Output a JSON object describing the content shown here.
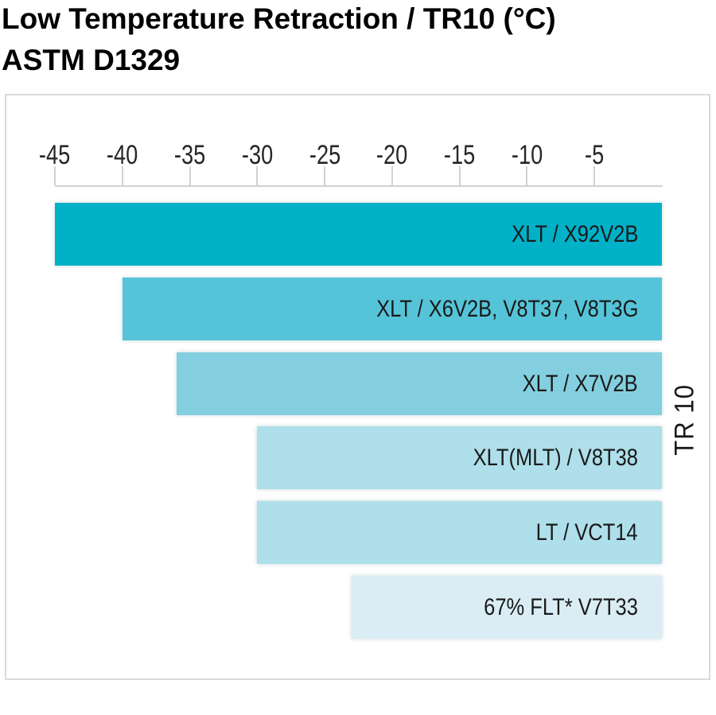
{
  "title": {
    "line1": "Low Temperature Retraction / TR10 (°C)",
    "line2": "ASTM D1329"
  },
  "chart_data": {
    "type": "bar",
    "orientation": "horizontal",
    "title": "Low Temperature Retraction / TR10 (°C) ASTM D1329",
    "xlabel": "",
    "ylabel_right": "TR 10",
    "xlim": [
      -45,
      0
    ],
    "x_ticks": [
      -45,
      -40,
      -35,
      -30,
      -25,
      -20,
      -15,
      -10,
      -5
    ],
    "grid": false,
    "legend": "none",
    "bars": [
      {
        "label": "XLT / X92V2B",
        "value": -45,
        "color": "#00b1c8"
      },
      {
        "label": "XLT / X6V2B, V8T37, V8T3G",
        "value": -40,
        "color": "#55c4d8"
      },
      {
        "label": "XLT / X7V2B",
        "value": -36,
        "color": "#83cfdf"
      },
      {
        "label": "XLT(MLT) / V8T38",
        "value": -30,
        "color": "#aedfea"
      },
      {
        "label": "LT / VCT14",
        "value": -30,
        "color": "#aedfea"
      },
      {
        "label": "67% FLT* V7T33",
        "value": -23,
        "color": "#daedf5"
      }
    ],
    "colors": {
      "panel_border": "#dadada",
      "axis": "#d2d2d2",
      "tick_text": "#262626",
      "bar_text": "#1a1a1a",
      "title_text": "#000000",
      "background": "#ffffff"
    }
  }
}
